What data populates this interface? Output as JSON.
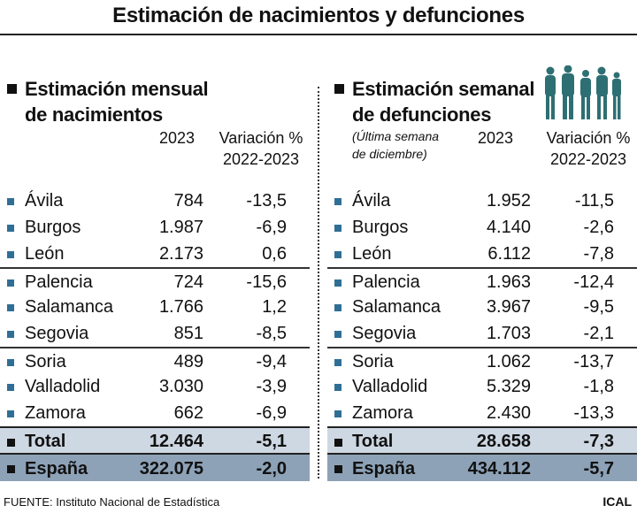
{
  "title": "Estimación de nacimientos y defunciones",
  "chart_data": [
    {
      "type": "table",
      "title_line1": "Estimación mensual",
      "title_line2": "de nacimientos",
      "columns": [
        "2023",
        "Variación %",
        "2022-2023"
      ],
      "rows": [
        {
          "name": "Ávila",
          "value": "784",
          "variation": "-13,5"
        },
        {
          "name": "Burgos",
          "value": "1.987",
          "variation": "-6,9"
        },
        {
          "name": "León",
          "value": "2.173",
          "variation": "0,6"
        },
        {
          "name": "Palencia",
          "value": "724",
          "variation": "-15,6"
        },
        {
          "name": "Salamanca",
          "value": "1.766",
          "variation": "1,2"
        },
        {
          "name": "Segovia",
          "value": "851",
          "variation": "-8,5"
        },
        {
          "name": "Soria",
          "value": "489",
          "variation": "-9,4"
        },
        {
          "name": "Valladolid",
          "value": "3.030",
          "variation": "-3,9"
        },
        {
          "name": "Zamora",
          "value": "662",
          "variation": "-6,9"
        }
      ],
      "total": {
        "name": "Total",
        "value": "12.464",
        "variation": "-5,1"
      },
      "spain": {
        "name": "España",
        "value": "322.075",
        "variation": "-2,0"
      }
    },
    {
      "type": "table",
      "title_line1": "Estimación semanal",
      "title_line2": "de defunciones",
      "note_line1": "(Última semana",
      "note_line2": "de diciembre)",
      "columns": [
        "2023",
        "Variación %",
        "2022-2023"
      ],
      "rows": [
        {
          "name": "Ávila",
          "value": "1.952",
          "variation": "-11,5"
        },
        {
          "name": "Burgos",
          "value": "4.140",
          "variation": "-2,6"
        },
        {
          "name": "León",
          "value": "6.112",
          "variation": "-7,8"
        },
        {
          "name": "Palencia",
          "value": "1.963",
          "variation": "-12,4"
        },
        {
          "name": "Salamanca",
          "value": "3.967",
          "variation": "-9,5"
        },
        {
          "name": "Segovia",
          "value": "1.703",
          "variation": "-2,1"
        },
        {
          "name": "Soria",
          "value": "1.062",
          "variation": "-13,7"
        },
        {
          "name": "Valladolid",
          "value": "5.329",
          "variation": "-1,8"
        },
        {
          "name": "Zamora",
          "value": "2.430",
          "variation": "-13,3"
        }
      ],
      "total": {
        "name": "Total",
        "value": "28.658",
        "variation": "-7,3"
      },
      "spain": {
        "name": "España",
        "value": "434.112",
        "variation": "-5,7"
      }
    }
  ],
  "colors": {
    "accent": "#2f6f96",
    "total_bg": "#ced8e2",
    "spain_bg": "#8da2b7",
    "illustration": "#2e6f73"
  },
  "icons": {
    "people": "people-silhouette-icon"
  },
  "source": "FUENTE: Instituto Nacional de Estadística",
  "brand": "ICAL"
}
